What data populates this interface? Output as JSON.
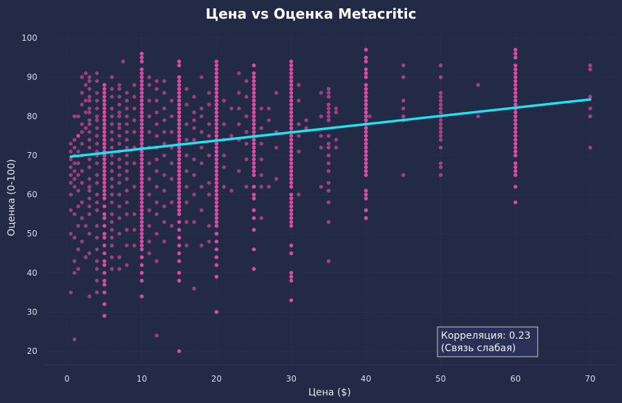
{
  "chart_data": {
    "type": "scatter",
    "title": "Цена vs Оценка Metacritic",
    "xlabel": "Цена ($)",
    "ylabel": "Оценка (0-100)",
    "xlim": [
      -3,
      73.5
    ],
    "ylim": [
      17,
      102
    ],
    "xticks": [
      0,
      10,
      20,
      30,
      40,
      50,
      60,
      70
    ],
    "yticks": [
      20,
      30,
      40,
      50,
      60,
      70,
      80,
      90,
      100
    ],
    "grid": true,
    "colors": {
      "background": "#222a45",
      "points": "#ff4fb4",
      "trend": "#19e6f2",
      "grid": "#2b3557",
      "annotation_border": "#c8cad6",
      "annotation_fill": "#2a335a"
    },
    "annotation": {
      "line1": "Корреляция: 0.23",
      "line2": "(Связь слабая)",
      "position": "bottom-right"
    },
    "trend_line": {
      "x": [
        0.5,
        70
      ],
      "y": [
        69.7,
        84.3
      ]
    },
    "columns": [
      {
        "x": 5,
        "y": [
          29,
          32,
          35,
          37,
          38,
          40,
          42,
          43,
          45,
          47,
          49,
          50,
          52,
          54,
          55,
          57,
          59,
          60,
          61,
          62,
          63,
          64,
          65,
          66,
          67,
          68,
          69,
          70,
          71,
          72,
          73,
          74,
          75,
          76,
          77,
          78,
          79,
          80,
          81,
          82,
          83,
          84,
          85,
          86,
          87,
          88
        ]
      },
      {
        "x": 10,
        "y": [
          34,
          38,
          40,
          42,
          44,
          46,
          47,
          48,
          49,
          50,
          51,
          52,
          53,
          54,
          55,
          56,
          57,
          58,
          59,
          60,
          61,
          62,
          63,
          64,
          65,
          66,
          67,
          68,
          69,
          70,
          71,
          72,
          73,
          74,
          75,
          76,
          77,
          78,
          79,
          80,
          81,
          82,
          83,
          84,
          85,
          86,
          87,
          88,
          89,
          90,
          91,
          92,
          94,
          95,
          96
        ]
      },
      {
        "x": 15,
        "y": [
          20,
          38,
          40,
          43,
          45,
          47,
          49,
          51,
          53,
          55,
          56,
          57,
          58,
          59,
          60,
          61,
          62,
          63,
          64,
          65,
          66,
          67,
          68,
          69,
          70,
          71,
          72,
          73,
          74,
          75,
          76,
          77,
          78,
          79,
          80,
          81,
          82,
          83,
          84,
          85,
          86,
          87,
          88,
          89,
          90,
          93,
          94
        ]
      },
      {
        "x": 20,
        "y": [
          30,
          39,
          42,
          44,
          46,
          48,
          50,
          52,
          53,
          54,
          55,
          56,
          57,
          58,
          59,
          60,
          61,
          62,
          63,
          64,
          65,
          66,
          67,
          68,
          69,
          70,
          71,
          72,
          73,
          74,
          75,
          76,
          77,
          78,
          79,
          80,
          81,
          82,
          83,
          84,
          85,
          86,
          87,
          88,
          89,
          90,
          91,
          92,
          93,
          94
        ]
      },
      {
        "x": 25,
        "y": [
          41,
          46,
          51,
          54,
          56,
          59,
          60,
          62,
          65,
          66,
          67,
          68,
          69,
          70,
          71,
          72,
          73,
          74,
          75,
          76,
          77,
          78,
          79,
          80,
          81,
          82,
          83,
          84,
          85,
          86,
          87,
          88,
          89,
          90,
          91,
          93
        ]
      },
      {
        "x": 30,
        "y": [
          33,
          38,
          39,
          40,
          45,
          47,
          52,
          53,
          54,
          55,
          56,
          57,
          58,
          59,
          60,
          62,
          63,
          64,
          65,
          66,
          67,
          68,
          69,
          70,
          71,
          72,
          73,
          74,
          75,
          76,
          77,
          78,
          79,
          80,
          81,
          82,
          83,
          84,
          85,
          86,
          87,
          88,
          89,
          90,
          91,
          92,
          93,
          94
        ]
      },
      {
        "x": 35,
        "y": [
          43,
          53,
          58,
          61,
          63,
          66,
          68,
          70,
          72,
          73,
          75,
          79,
          80,
          81,
          82,
          83,
          85,
          86,
          87
        ]
      },
      {
        "x": 40,
        "y": [
          54,
          56,
          59,
          60,
          61,
          65,
          66,
          67,
          68,
          69,
          70,
          71,
          72,
          73,
          74,
          75,
          76,
          77,
          78,
          79,
          80,
          81,
          82,
          83,
          84,
          85,
          86,
          87,
          88,
          90,
          91,
          92,
          94,
          95,
          97
        ]
      },
      {
        "x": 45,
        "y": [
          65,
          79,
          80,
          82,
          84,
          90,
          93
        ]
      },
      {
        "x": 50,
        "y": [
          65,
          67,
          68,
          72,
          74,
          75,
          76,
          77,
          78,
          79,
          80,
          81,
          82,
          83,
          84,
          85,
          86,
          90,
          93
        ]
      },
      {
        "x": 55,
        "y": [
          80,
          88
        ]
      },
      {
        "x": 60,
        "y": [
          58,
          62,
          65,
          66,
          67,
          68,
          70,
          71,
          72,
          73,
          74,
          75,
          76,
          77,
          78,
          79,
          80,
          81,
          82,
          83,
          84,
          85,
          86,
          87,
          88,
          89,
          90,
          91,
          92,
          93,
          95,
          96,
          97
        ]
      },
      {
        "x": 70,
        "y": [
          72,
          80,
          82,
          85,
          92,
          93
        ]
      }
    ],
    "scattered": [
      [
        0.5,
        35
      ],
      [
        1,
        23
      ],
      [
        1,
        40
      ],
      [
        1,
        43
      ],
      [
        0.5,
        50
      ],
      [
        1,
        49
      ],
      [
        0.5,
        56
      ],
      [
        1,
        55
      ],
      [
        0.5,
        60
      ],
      [
        1,
        62
      ],
      [
        0.5,
        63
      ],
      [
        1,
        64
      ],
      [
        0.5,
        65
      ],
      [
        1,
        66
      ],
      [
        0.5,
        67
      ],
      [
        1,
        68
      ],
      [
        0.5,
        69
      ],
      [
        1,
        70
      ],
      [
        0.5,
        71
      ],
      [
        1,
        72
      ],
      [
        0.5,
        73
      ],
      [
        1,
        74
      ],
      [
        1.5,
        75
      ],
      [
        1,
        80
      ],
      [
        1.5,
        41
      ],
      [
        1.5,
        46
      ],
      [
        2,
        48
      ],
      [
        1.5,
        52
      ],
      [
        2,
        54
      ],
      [
        1.5,
        57
      ],
      [
        2,
        58
      ],
      [
        1.5,
        61
      ],
      [
        2,
        63
      ],
      [
        1.5,
        65
      ],
      [
        2,
        66
      ],
      [
        1.5,
        68
      ],
      [
        2,
        70
      ],
      [
        1.5,
        71
      ],
      [
        2,
        73
      ],
      [
        1.5,
        75
      ],
      [
        2,
        76
      ],
      [
        2.5,
        77
      ],
      [
        2,
        78
      ],
      [
        1.5,
        80
      ],
      [
        2.5,
        81
      ],
      [
        2,
        83
      ],
      [
        2.5,
        84
      ],
      [
        2,
        86
      ],
      [
        2.5,
        88
      ],
      [
        2,
        90
      ],
      [
        2.5,
        91
      ],
      [
        2.5,
        44
      ],
      [
        3,
        45
      ],
      [
        3,
        34
      ],
      [
        3,
        50
      ],
      [
        2.5,
        52
      ],
      [
        3,
        55
      ],
      [
        3,
        57
      ],
      [
        3,
        59
      ],
      [
        3,
        61
      ],
      [
        3,
        62
      ],
      [
        3,
        64
      ],
      [
        3,
        67
      ],
      [
        3,
        69
      ],
      [
        3,
        72
      ],
      [
        3,
        74
      ],
      [
        3,
        76
      ],
      [
        3,
        78
      ],
      [
        3,
        79
      ],
      [
        3,
        81
      ],
      [
        3,
        82
      ],
      [
        3,
        84
      ],
      [
        3,
        85
      ],
      [
        3,
        87
      ],
      [
        3,
        89
      ],
      [
        3,
        90
      ],
      [
        4,
        35
      ],
      [
        4,
        38
      ],
      [
        4,
        41
      ],
      [
        4,
        43
      ],
      [
        4,
        46
      ],
      [
        4,
        49
      ],
      [
        4,
        52
      ],
      [
        4,
        56
      ],
      [
        4,
        58
      ],
      [
        4,
        60
      ],
      [
        4,
        63
      ],
      [
        4,
        65
      ],
      [
        4,
        68
      ],
      [
        4,
        70
      ],
      [
        4,
        71
      ],
      [
        4,
        73
      ],
      [
        4,
        75
      ],
      [
        4,
        77
      ],
      [
        4,
        79
      ],
      [
        4,
        80
      ],
      [
        4,
        82
      ],
      [
        4,
        84
      ],
      [
        4,
        86
      ],
      [
        4,
        89
      ],
      [
        4,
        91
      ],
      [
        6,
        41
      ],
      [
        6,
        44
      ],
      [
        6,
        47
      ],
      [
        6,
        49
      ],
      [
        6,
        51
      ],
      [
        6,
        53
      ],
      [
        6,
        55
      ],
      [
        6,
        58
      ],
      [
        6,
        60
      ],
      [
        6,
        62
      ],
      [
        6,
        64
      ],
      [
        6,
        66
      ],
      [
        6,
        68
      ],
      [
        6,
        70
      ],
      [
        6,
        72
      ],
      [
        6,
        74
      ],
      [
        6,
        76
      ],
      [
        6,
        78
      ],
      [
        6,
        80
      ],
      [
        6,
        82
      ],
      [
        6,
        85
      ],
      [
        6,
        87
      ],
      [
        6,
        90
      ],
      [
        7,
        41
      ],
      [
        7,
        44
      ],
      [
        7,
        50
      ],
      [
        7,
        54
      ],
      [
        7,
        57
      ],
      [
        7,
        60
      ],
      [
        7,
        63
      ],
      [
        7,
        65
      ],
      [
        7,
        67
      ],
      [
        7,
        69
      ],
      [
        7,
        71
      ],
      [
        7,
        73
      ],
      [
        7,
        75
      ],
      [
        7,
        77
      ],
      [
        7,
        78
      ],
      [
        7,
        80
      ],
      [
        7,
        81
      ],
      [
        7,
        83
      ],
      [
        7,
        85
      ],
      [
        7,
        87
      ],
      [
        7,
        88
      ],
      [
        8,
        42
      ],
      [
        8,
        47
      ],
      [
        8,
        51
      ],
      [
        8,
        55
      ],
      [
        8,
        58
      ],
      [
        8,
        61
      ],
      [
        8,
        64
      ],
      [
        8,
        66
      ],
      [
        8,
        68
      ],
      [
        8,
        70
      ],
      [
        8,
        72
      ],
      [
        8,
        74
      ],
      [
        8,
        76
      ],
      [
        8,
        78
      ],
      [
        8,
        80
      ],
      [
        8,
        82
      ],
      [
        8,
        84
      ],
      [
        8,
        86
      ],
      [
        7.5,
        94
      ],
      [
        9,
        47
      ],
      [
        9,
        51
      ],
      [
        9,
        55
      ],
      [
        9,
        62
      ],
      [
        9,
        68
      ],
      [
        9,
        72
      ],
      [
        9,
        76
      ],
      [
        9,
        79
      ],
      [
        9,
        82
      ],
      [
        9,
        85
      ],
      [
        9,
        88
      ],
      [
        11,
        45
      ],
      [
        11,
        48
      ],
      [
        11,
        52
      ],
      [
        11,
        56
      ],
      [
        11,
        60
      ],
      [
        11,
        64
      ],
      [
        11,
        68
      ],
      [
        11,
        72
      ],
      [
        11,
        76
      ],
      [
        11,
        80
      ],
      [
        11,
        84
      ],
      [
        11,
        88
      ],
      [
        11,
        90
      ],
      [
        12,
        24
      ],
      [
        12,
        43
      ],
      [
        12,
        50
      ],
      [
        12,
        55
      ],
      [
        12,
        58
      ],
      [
        12,
        62
      ],
      [
        12,
        66
      ],
      [
        12,
        69
      ],
      [
        12,
        72
      ],
      [
        12,
        75
      ],
      [
        12,
        78
      ],
      [
        12,
        81
      ],
      [
        12,
        84
      ],
      [
        12,
        87
      ],
      [
        12,
        89
      ],
      [
        13,
        48
      ],
      [
        13,
        53
      ],
      [
        13,
        57
      ],
      [
        13,
        61
      ],
      [
        13,
        65
      ],
      [
        13,
        70
      ],
      [
        13,
        73
      ],
      [
        13,
        76
      ],
      [
        13,
        79
      ],
      [
        13,
        82
      ],
      [
        13,
        86
      ],
      [
        13,
        89
      ],
      [
        14,
        52
      ],
      [
        14,
        58
      ],
      [
        14,
        64
      ],
      [
        14,
        68
      ],
      [
        14,
        72
      ],
      [
        14,
        76
      ],
      [
        14,
        80
      ],
      [
        14,
        84
      ],
      [
        16,
        47
      ],
      [
        16,
        53
      ],
      [
        16,
        58
      ],
      [
        16,
        62
      ],
      [
        16,
        66
      ],
      [
        16,
        70
      ],
      [
        16,
        74
      ],
      [
        16,
        78
      ],
      [
        16,
        83
      ],
      [
        16,
        87
      ],
      [
        17,
        36
      ],
      [
        17,
        53
      ],
      [
        17,
        60
      ],
      [
        17,
        65
      ],
      [
        17,
        69
      ],
      [
        17,
        74
      ],
      [
        17,
        77
      ],
      [
        17,
        79
      ],
      [
        17,
        81
      ],
      [
        17,
        85
      ],
      [
        18,
        47
      ],
      [
        18,
        56
      ],
      [
        18,
        62
      ],
      [
        18,
        68
      ],
      [
        18,
        72
      ],
      [
        18,
        76
      ],
      [
        18,
        80
      ],
      [
        18,
        82
      ],
      [
        18,
        90
      ],
      [
        19,
        48
      ],
      [
        19,
        52
      ],
      [
        19,
        60
      ],
      [
        19,
        63
      ],
      [
        19,
        70
      ],
      [
        19,
        75
      ],
      [
        19,
        78
      ],
      [
        19,
        83
      ],
      [
        19,
        86
      ],
      [
        21,
        62
      ],
      [
        21,
        67
      ],
      [
        21,
        70
      ],
      [
        21,
        74
      ],
      [
        21,
        78
      ],
      [
        21,
        84
      ],
      [
        22,
        61
      ],
      [
        22,
        75
      ],
      [
        22,
        82
      ],
      [
        23,
        66
      ],
      [
        23,
        74
      ],
      [
        23,
        78
      ],
      [
        23,
        82
      ],
      [
        23,
        86
      ],
      [
        23,
        91
      ],
      [
        24,
        62
      ],
      [
        24,
        69
      ],
      [
        24,
        73
      ],
      [
        24,
        76
      ],
      [
        24,
        80
      ],
      [
        24,
        85
      ],
      [
        24,
        89
      ],
      [
        26,
        54
      ],
      [
        26,
        62
      ],
      [
        26,
        65
      ],
      [
        26,
        69
      ],
      [
        26,
        73
      ],
      [
        26,
        77
      ],
      [
        26,
        82
      ],
      [
        27,
        62
      ],
      [
        27,
        79
      ],
      [
        27,
        82
      ],
      [
        28,
        64
      ],
      [
        28,
        72
      ],
      [
        28,
        76
      ],
      [
        28,
        86
      ],
      [
        31,
        60
      ],
      [
        31,
        71
      ],
      [
        31,
        75
      ],
      [
        31,
        78
      ],
      [
        31,
        84
      ],
      [
        31,
        88
      ],
      [
        32,
        77
      ],
      [
        32,
        79
      ],
      [
        34,
        62
      ],
      [
        34,
        72
      ],
      [
        34,
        75
      ],
      [
        34,
        80
      ],
      [
        34,
        86
      ],
      [
        36,
        72
      ],
      [
        36,
        74
      ],
      [
        36,
        81
      ],
      [
        36,
        82
      ],
      [
        40.5,
        80
      ]
    ]
  }
}
